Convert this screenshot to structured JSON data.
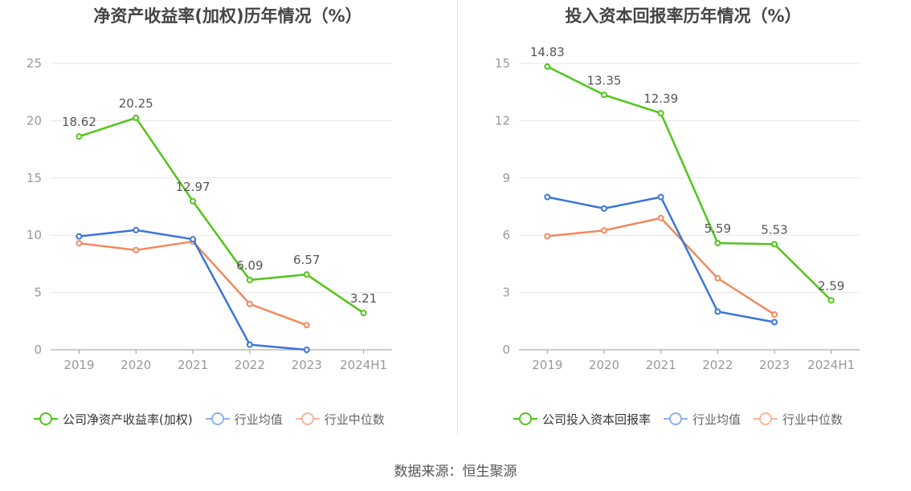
{
  "colors": {
    "company": "#52c41a",
    "industry_avg": "#3a75d9",
    "industry_median": "#f08a5d",
    "industry_avg_legend": "#8fb0ee",
    "industry_median_legend": "#f6b49b",
    "grid": "#e6e6e6",
    "axis": "#999999",
    "tick_text": "#999999",
    "label_text": "#555555"
  },
  "source": "数据来源：恒生聚源",
  "chart_data": [
    {
      "type": "line",
      "title": "净资产收益率(加权)历年情况（%）",
      "categories": [
        "2019",
        "2020",
        "2021",
        "2022",
        "2023",
        "2024H1"
      ],
      "ylim": [
        0,
        25
      ],
      "yticks": [
        0,
        5,
        10,
        15,
        20,
        25
      ],
      "grid": true,
      "legend_position": "bottom",
      "series": [
        {
          "name": "公司净资产收益率(加权)",
          "color_key": "company",
          "values": [
            18.62,
            20.25,
            12.97,
            6.09,
            6.57,
            3.21
          ],
          "labels": [
            "18.62",
            "20.25",
            "12.97",
            "6.09",
            "6.57",
            "3.21"
          ]
        },
        {
          "name": "行业均值",
          "color_key": "industry_avg",
          "values": [
            9.9,
            10.45,
            9.65,
            0.45,
            0.0,
            null
          ]
        },
        {
          "name": "行业中位数",
          "color_key": "industry_median",
          "values": [
            9.3,
            8.7,
            9.45,
            4.0,
            2.15,
            null
          ]
        }
      ]
    },
    {
      "type": "line",
      "title": "投入资本回报率历年情况（%）",
      "categories": [
        "2019",
        "2020",
        "2021",
        "2022",
        "2023",
        "2024H1"
      ],
      "ylim": [
        0,
        15
      ],
      "yticks": [
        0,
        3,
        6,
        9,
        12,
        15
      ],
      "grid": true,
      "legend_position": "bottom",
      "series": [
        {
          "name": "公司投入资本回报率",
          "color_key": "company",
          "values": [
            14.83,
            13.35,
            12.39,
            5.59,
            5.53,
            2.59
          ],
          "labels": [
            "14.83",
            "13.35",
            "12.39",
            "5.59",
            "5.53",
            "2.59"
          ]
        },
        {
          "name": "行业均值",
          "color_key": "industry_avg",
          "values": [
            8.0,
            7.4,
            8.0,
            2.0,
            1.45,
            null
          ]
        },
        {
          "name": "行业中位数",
          "color_key": "industry_median",
          "values": [
            5.95,
            6.25,
            6.9,
            3.75,
            1.85,
            null
          ]
        }
      ]
    }
  ]
}
